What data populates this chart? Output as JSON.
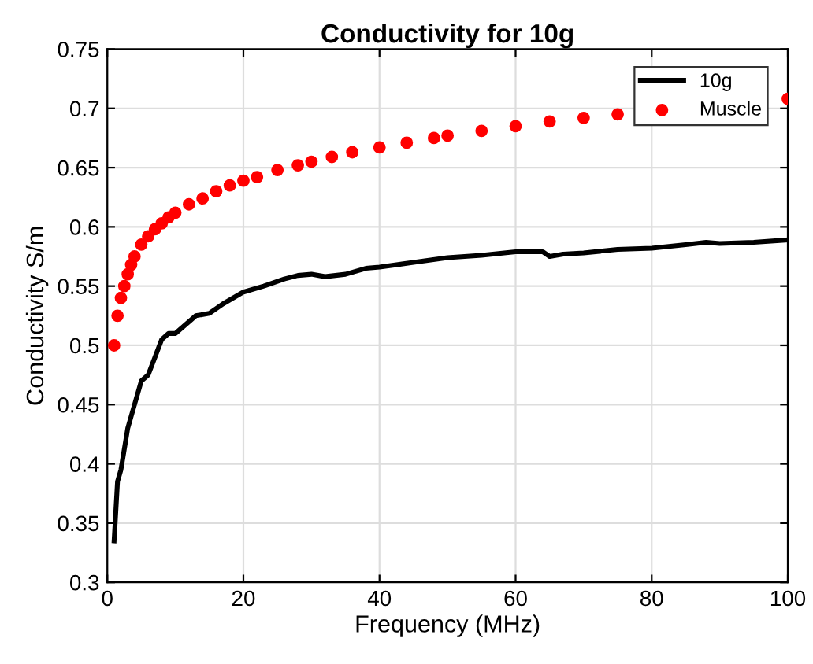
{
  "chart_data": {
    "type": "line",
    "title": "Conductivity for 10g",
    "xlabel": "Frequency (MHz)",
    "ylabel": "Conductivity S/m",
    "xlim": [
      0,
      100
    ],
    "ylim": [
      0.3,
      0.75
    ],
    "xticks": [
      0,
      20,
      40,
      60,
      80,
      100
    ],
    "yticks": [
      0.3,
      0.35,
      0.4,
      0.45,
      0.5,
      0.55,
      0.6,
      0.65,
      0.7,
      0.75
    ],
    "grid": true,
    "legend": "top right",
    "series": [
      {
        "name": "10g",
        "color": "#000000",
        "x": [
          1,
          1.5,
          2,
          3,
          4,
          5,
          6,
          7,
          8,
          9,
          10,
          11,
          12,
          13,
          15,
          17,
          20,
          23,
          26,
          28,
          30,
          32,
          35,
          38,
          40,
          45,
          50,
          55,
          60,
          62,
          64,
          65,
          67,
          70,
          75,
          80,
          85,
          88,
          90,
          95,
          100
        ],
        "values": [
          0.335,
          0.385,
          0.395,
          0.43,
          0.45,
          0.47,
          0.475,
          0.49,
          0.505,
          0.51,
          0.51,
          0.515,
          0.52,
          0.525,
          0.527,
          0.535,
          0.545,
          0.55,
          0.556,
          0.559,
          0.56,
          0.558,
          0.56,
          0.565,
          0.566,
          0.57,
          0.574,
          0.576,
          0.579,
          0.579,
          0.579,
          0.575,
          0.577,
          0.578,
          0.581,
          0.582,
          0.585,
          0.587,
          0.586,
          0.587,
          0.589
        ]
      },
      {
        "name": "Muscle",
        "type": "scatter",
        "color": "#ff0000",
        "x": [
          1,
          1.5,
          2,
          2.5,
          3,
          3.5,
          4,
          5,
          6,
          7,
          8,
          9,
          10,
          12,
          14,
          16,
          18,
          20,
          22,
          25,
          28,
          30,
          33,
          36,
          40,
          44,
          48,
          50,
          55,
          60,
          65,
          70,
          75,
          80,
          85,
          90,
          95,
          100
        ],
        "values": [
          0.5,
          0.525,
          0.54,
          0.55,
          0.56,
          0.568,
          0.575,
          0.585,
          0.592,
          0.598,
          0.603,
          0.608,
          0.612,
          0.619,
          0.624,
          0.63,
          0.635,
          0.639,
          0.642,
          0.648,
          0.652,
          0.655,
          0.659,
          0.663,
          0.667,
          0.671,
          0.675,
          0.677,
          0.681,
          0.685,
          0.689,
          0.692,
          0.695,
          null,
          null,
          null,
          null,
          0.708
        ]
      }
    ]
  }
}
